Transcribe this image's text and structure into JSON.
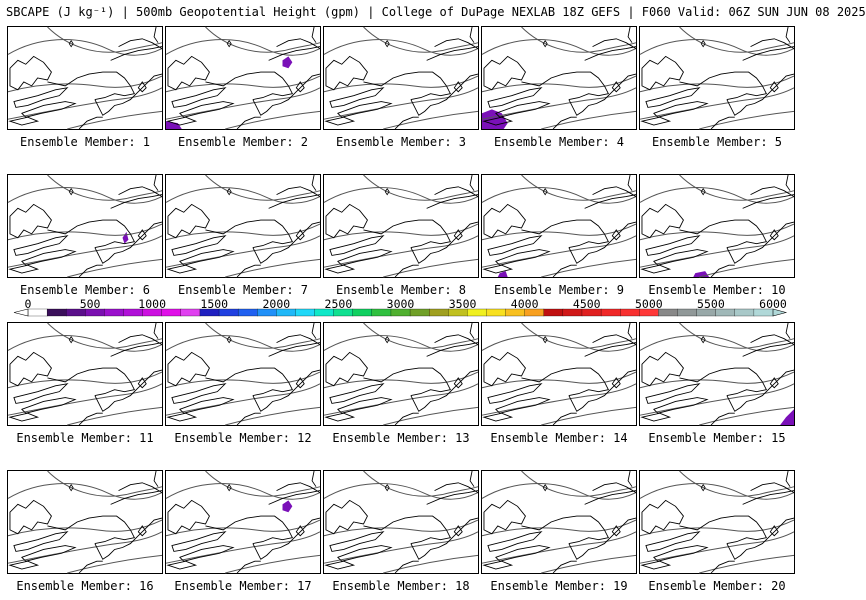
{
  "title": "SBCAPE (J kg⁻¹) | 500mb Geopotential Height (gpm) | College of DuPage NEXLAB 18Z GEFS | F060 Valid: 06Z SUN JUN 08 2025",
  "panels": [
    {
      "label": "Ensemble Member: 1",
      "blobs": []
    },
    {
      "label": "Ensemble Member: 2",
      "blobs": [
        "ne-small",
        "sw-corner"
      ]
    },
    {
      "label": "Ensemble Member: 3",
      "blobs": []
    },
    {
      "label": "Ensemble Member: 4",
      "blobs": [
        "sw-large"
      ]
    },
    {
      "label": "Ensemble Member: 5",
      "blobs": []
    },
    {
      "label": "Ensemble Member: 6",
      "blobs": [
        "nyc"
      ]
    },
    {
      "label": "Ensemble Member: 7",
      "blobs": []
    },
    {
      "label": "Ensemble Member: 8",
      "blobs": []
    },
    {
      "label": "Ensemble Member: 9",
      "blobs": [
        "sw-tiny"
      ]
    },
    {
      "label": "Ensemble Member: 10",
      "blobs": [
        "s-edge"
      ]
    },
    {
      "label": "Ensemble Member: 11",
      "blobs": []
    },
    {
      "label": "Ensemble Member: 12",
      "blobs": []
    },
    {
      "label": "Ensemble Member: 13",
      "blobs": []
    },
    {
      "label": "Ensemble Member: 14",
      "blobs": []
    },
    {
      "label": "Ensemble Member: 15",
      "blobs": [
        "se-corner"
      ]
    },
    {
      "label": "Ensemble Member: 16",
      "blobs": []
    },
    {
      "label": "Ensemble Member: 17",
      "blobs": [
        "ne-small"
      ]
    },
    {
      "label": "Ensemble Member: 18",
      "blobs": []
    },
    {
      "label": "Ensemble Member: 19",
      "blobs": []
    },
    {
      "label": "Ensemble Member: 20",
      "blobs": []
    }
  ],
  "colorbar": {
    "ticks": [
      "0",
      "500",
      "1000",
      "1500",
      "2000",
      "2500",
      "3000",
      "3500",
      "4000",
      "4500",
      "5000",
      "5500",
      "6000"
    ],
    "colors": [
      "#ffffff",
      "#3a0f5a",
      "#5a0f8a",
      "#7a0fb0",
      "#9a10cc",
      "#b010d8",
      "#cc10e0",
      "#e010e8",
      "#e040f0",
      "#2020c0",
      "#2040e0",
      "#2060f0",
      "#2090f8",
      "#20b8f8",
      "#20d8f8",
      "#10e8c8",
      "#10e090",
      "#10d060",
      "#30c040",
      "#50b030",
      "#70a028",
      "#a0a020",
      "#c0c020",
      "#f0f020",
      "#f8e020",
      "#f8c020",
      "#f8a020",
      "#c01010",
      "#d01818",
      "#e02020",
      "#f02828",
      "#f83030",
      "#ff3838",
      "#888888",
      "#909898",
      "#98a8a8",
      "#a0b8b8",
      "#a8c8c8",
      "#b0d8d8"
    ],
    "blob_color": "#7a10b8"
  }
}
